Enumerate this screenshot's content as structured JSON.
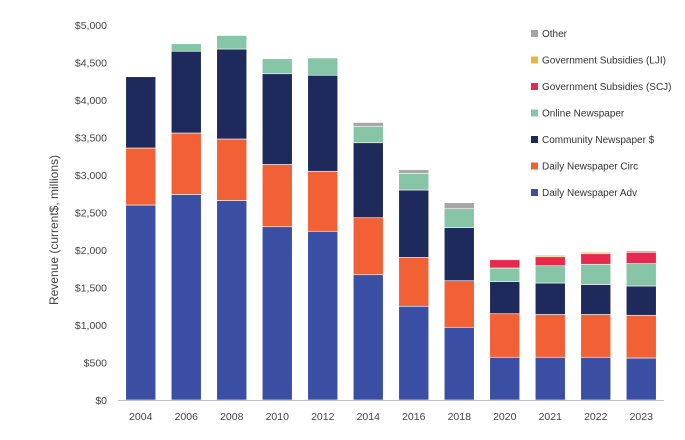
{
  "chart_data": {
    "type": "bar",
    "stacked": true,
    "title": "",
    "xlabel": "",
    "ylabel": "Revenue (current$, millions)",
    "ylim": [
      0,
      5000
    ],
    "ytick_step": 500,
    "ytick_labels": [
      "$0",
      "$500",
      "$1,000",
      "$1,500",
      "$2,000",
      "$2,500",
      "$3,000",
      "$3,500",
      "$4,000",
      "$4,500",
      "$5,000"
    ],
    "categories": [
      "2004",
      "2006",
      "2008",
      "2010",
      "2012",
      "2014",
      "2016",
      "2018",
      "2020",
      "2021",
      "2022",
      "2023"
    ],
    "grid": false,
    "legend_position": "right",
    "series": [
      {
        "name": "Daily Newspaper Adv",
        "color": "#3a4fa3",
        "values": [
          2600,
          2740,
          2660,
          2310,
          2250,
          1670,
          1250,
          970,
          570,
          570,
          570,
          560
        ]
      },
      {
        "name": "Daily Newspaper Circ",
        "color": "#f26135",
        "values": [
          760,
          820,
          820,
          830,
          800,
          760,
          650,
          620,
          580,
          570,
          570,
          570
        ]
      },
      {
        "name": "Community Newspaper $",
        "color": "#1f2a5c",
        "values": [
          950,
          1090,
          1200,
          1210,
          1280,
          1000,
          900,
          710,
          430,
          420,
          400,
          390
        ]
      },
      {
        "name": "Online Newspaper",
        "color": "#86c5a6",
        "values": [
          0,
          100,
          180,
          200,
          230,
          220,
          220,
          250,
          180,
          230,
          270,
          300
        ]
      },
      {
        "name": "Government Subsidies (SCJ)",
        "color": "#e8294e",
        "values": [
          0,
          0,
          0,
          0,
          0,
          0,
          0,
          0,
          110,
          120,
          140,
          150
        ]
      },
      {
        "name": "Government Subsidies (LJI)",
        "color": "#e0b93e",
        "values": [
          0,
          0,
          0,
          0,
          0,
          0,
          0,
          0,
          10,
          20,
          20,
          20
        ]
      },
      {
        "name": "Other",
        "color": "#a6a6a6",
        "values": [
          0,
          0,
          0,
          0,
          0,
          50,
          50,
          80,
          0,
          0,
          0,
          0
        ]
      }
    ]
  }
}
